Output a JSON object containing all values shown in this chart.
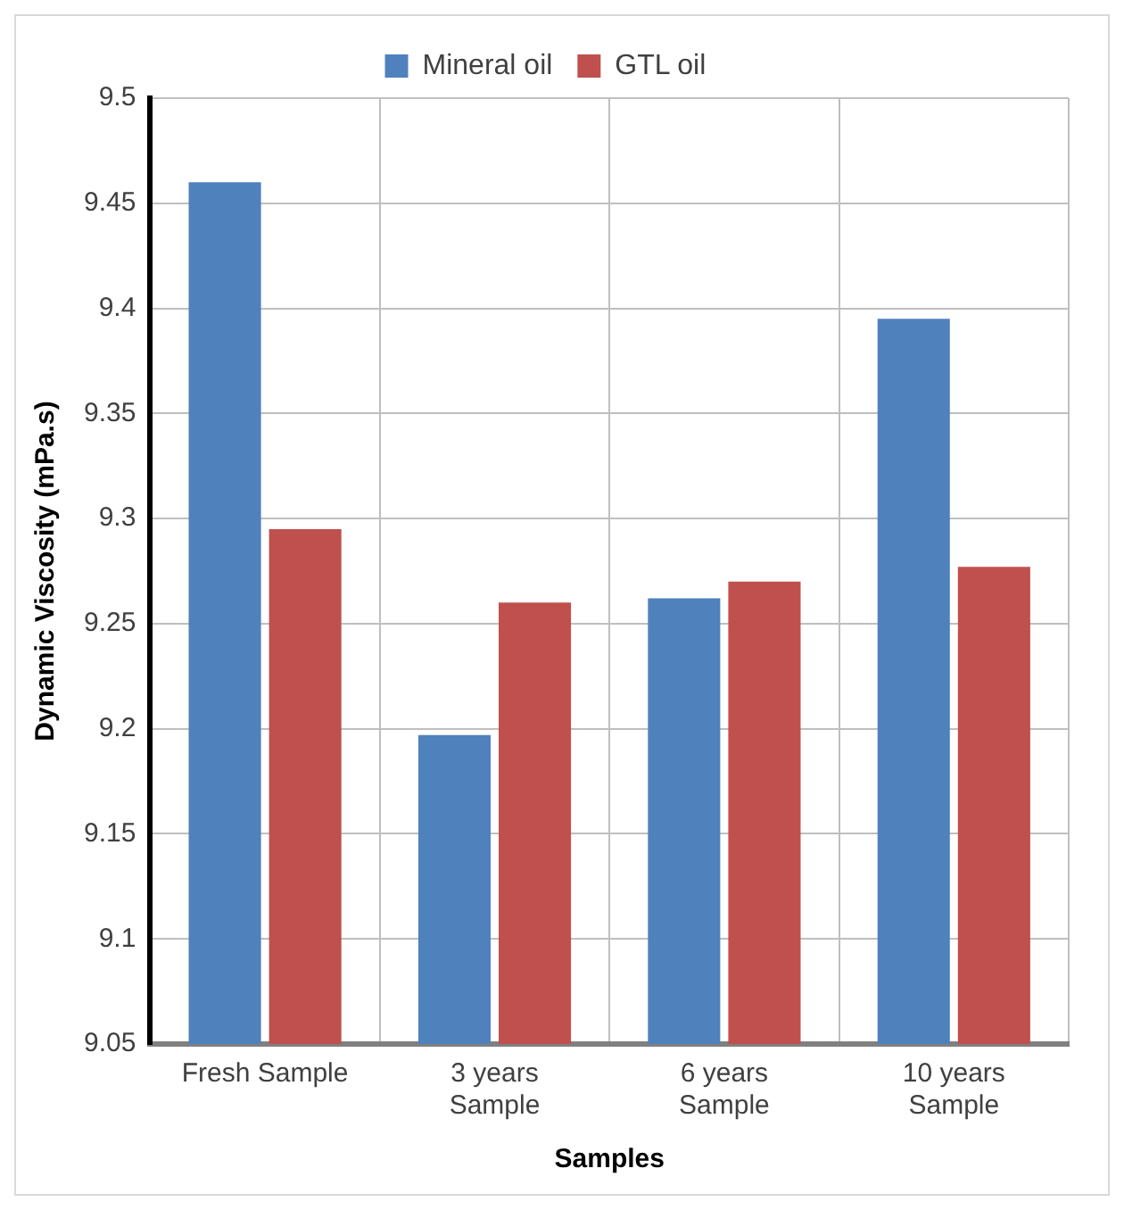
{
  "chart_data": {
    "type": "bar",
    "xlabel": "Samples",
    "ylabel": "Dynamic Viscosity (mPa.s)",
    "categories": [
      "Fresh Sample",
      "3 years Sample",
      "6 years Sample",
      "10 years Sample"
    ],
    "series": [
      {
        "name": "Mineral oil",
        "color": "#4f81bd",
        "values": [
          9.46,
          9.197,
          9.262,
          9.395
        ]
      },
      {
        "name": "GTL oil",
        "color": "#c0504d",
        "values": [
          9.295,
          9.26,
          9.27,
          9.277
        ]
      }
    ],
    "ylim": [
      9.05,
      9.5
    ],
    "yticks": [
      9.05,
      9.1,
      9.15,
      9.2,
      9.25,
      9.3,
      9.35,
      9.4,
      9.45,
      9.5
    ],
    "grid": true,
    "legend": "top"
  }
}
